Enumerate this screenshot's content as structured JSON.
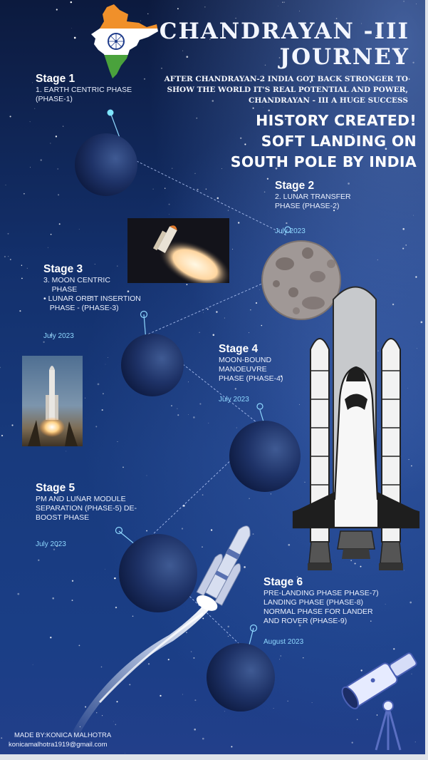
{
  "title": {
    "line1": "CHANDRAYAN -III",
    "line2": "JOURNEY"
  },
  "subtitle": {
    "line1": "AFTER CHANDRAYAN-2 INDIA GOT BACK STRONGER TO",
    "line2": "SHOW THE WORLD IT'S REAL POTENTIAL AND POWER,",
    "line3": "CHANDRAYAN - III A HUGE SUCCESS"
  },
  "headline": {
    "line1": "HISTORY CREATED!",
    "line2": "SOFT LANDING ON",
    "line3": "SOUTH POLE BY INDIA"
  },
  "stages": [
    {
      "title": "Stage 1",
      "desc": "1. EARTH CENTRIC PHASE\n(PHASE-1)",
      "date": ""
    },
    {
      "title": "Stage 2",
      "desc": "2. LUNAR TRANSFER\nPHASE (PHASE-2)",
      "date": "July 2023"
    },
    {
      "title": "Stage 3",
      "desc": "3. MOON CENTRIC\n    PHASE\n• LUNAR ORBIT INSERTION\n   PHASE - (PHASE-3)",
      "date": "July 2023"
    },
    {
      "title": "Stage 4",
      "desc": "MOON-BOUND\nMANOEUVRE\nPHASE (PHASE-4)",
      "date": "July 2023"
    },
    {
      "title": "Stage 5",
      "desc": "PM AND LUNAR MODULE\nSEPARATION (PHASE-5) DE-\nBOOST PHASE",
      "date": "July 2023"
    },
    {
      "title": "Stage 6",
      "desc": "PRE-LANDING PHASE PHASE-7)\nLANDING PHASE (PHASE-8)\nNORMAL PHASE FOR LANDER\nAND ROVER (PHASE-9)",
      "date": "August 2023"
    }
  ],
  "credit": {
    "author": "MADE BY:KONICA MALHOTRA",
    "email": "konicamalhotra1919@gmail.com"
  },
  "colors": {
    "saffron": "#f0902a",
    "green": "#4aa23c",
    "date_cyan": "#8fd8ff",
    "navy_chakra": "#1d3a8a"
  },
  "icons": [
    "india-map-flag-icon",
    "space-shuttle-icon",
    "rocket-launch-icon",
    "telescope-icon",
    "moon-icon",
    "planet-icon"
  ]
}
